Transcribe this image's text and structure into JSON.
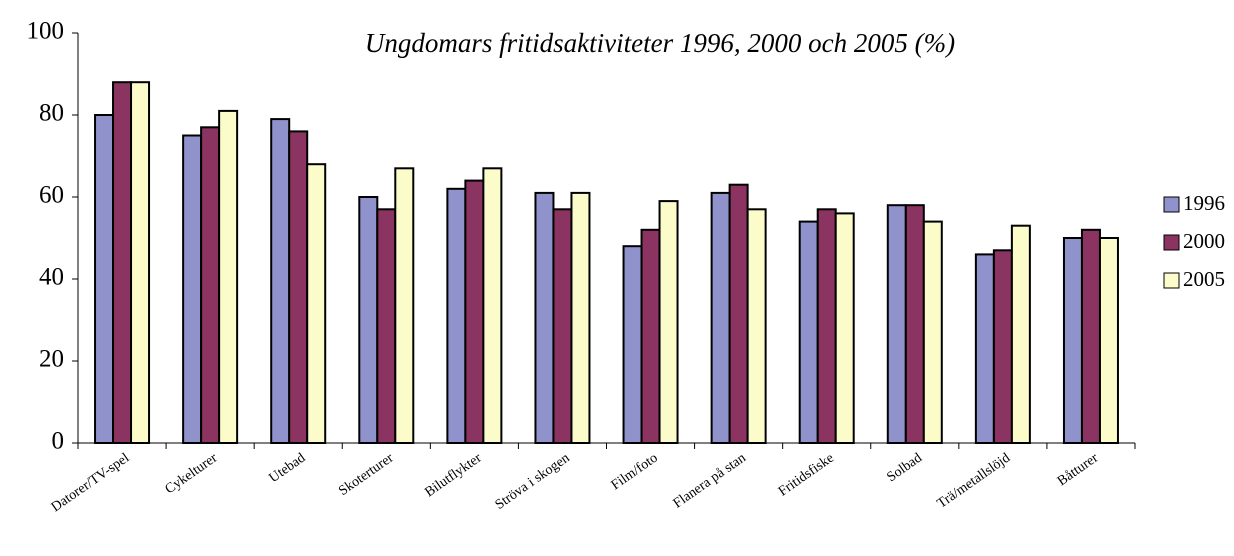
{
  "chart_data": {
    "type": "bar",
    "title": "Ungdomars fritidsaktiviteter 1996, 2000 och 2005 (%)",
    "categories": [
      "Datorer/TV-spel",
      "Cykelturer",
      "Utebad",
      "Skoterturer",
      "Bilutflykter",
      "Ströva i skogen",
      "Film/foto",
      "Flanera på stan",
      "Fritidsfiske",
      "Solbad",
      "Trä/metallslöjd",
      "Båtturer"
    ],
    "series": [
      {
        "name": "1996",
        "color": "#9093cb",
        "values": [
          80,
          75,
          79,
          60,
          62,
          61,
          48,
          61,
          54,
          58,
          46,
          50
        ]
      },
      {
        "name": "2000",
        "color": "#8c3461",
        "values": [
          88,
          77,
          76,
          57,
          64,
          57,
          52,
          63,
          57,
          58,
          47,
          52
        ]
      },
      {
        "name": "2005",
        "color": "#fcfcca",
        "values": [
          88,
          81,
          68,
          67,
          67,
          61,
          59,
          57,
          56,
          54,
          53,
          50
        ]
      }
    ],
    "ylim": [
      0,
      100
    ],
    "yticks": [
      0,
      20,
      40,
      60,
      80,
      100
    ],
    "legend": "right"
  }
}
